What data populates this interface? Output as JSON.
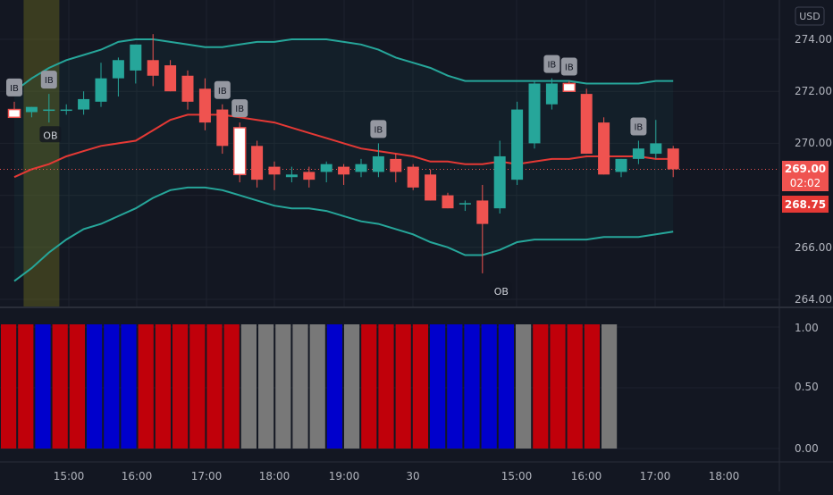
{
  "currency": "USD",
  "price_axis": {
    "ticks": [
      "274.00",
      "272.00",
      "270.00",
      "266.00",
      "264.00"
    ]
  },
  "price_labels": {
    "last_price": "269.00",
    "countdown": "02:02",
    "ref_price": "268.75",
    "last_color": "#ef5350",
    "ref_color": "#e53935"
  },
  "indicator_axis": {
    "ticks": [
      "1.00",
      "0.50",
      "0.00"
    ]
  },
  "time_axis": {
    "ticks": [
      "15:00",
      "16:00",
      "17:00",
      "18:00",
      "19:00",
      "30",
      "15:00",
      "16:00",
      "17:00",
      "18:00"
    ]
  },
  "markers": {
    "inside_bar": "IB",
    "order_block": "OB"
  },
  "colors": {
    "background": "#131722",
    "up": "#26a69a",
    "down": "#ef5350",
    "basis": "#e53935",
    "bands": "#26a69a",
    "ob_highlight": "#6b6b1f",
    "bar_red": "#c0000a",
    "bar_blue": "#0000cc",
    "bar_gray": "#787878"
  },
  "chart_data": {
    "type": "candlestick",
    "y_unit": "USD",
    "ylim": [
      263.8,
      275.0
    ],
    "candles": [
      {
        "o": 271.3,
        "h": 271.6,
        "l": 271.0,
        "c": 271.0
      },
      {
        "o": 271.2,
        "h": 271.4,
        "l": 271.0,
        "c": 271.4
      },
      {
        "o": 271.3,
        "h": 271.9,
        "l": 270.8,
        "c": 271.3
      },
      {
        "o": 271.3,
        "h": 271.5,
        "l": 271.1,
        "c": 271.3
      },
      {
        "o": 271.3,
        "h": 272.0,
        "l": 271.1,
        "c": 271.7
      },
      {
        "o": 271.6,
        "h": 273.1,
        "l": 271.4,
        "c": 272.5
      },
      {
        "o": 272.5,
        "h": 273.3,
        "l": 271.8,
        "c": 273.2
      },
      {
        "o": 272.8,
        "h": 273.8,
        "l": 272.3,
        "c": 273.8
      },
      {
        "o": 273.2,
        "h": 274.2,
        "l": 272.2,
        "c": 272.6
      },
      {
        "o": 273.0,
        "h": 273.2,
        "l": 272.0,
        "c": 272.0
      },
      {
        "o": 272.6,
        "h": 272.8,
        "l": 271.3,
        "c": 271.6
      },
      {
        "o": 272.1,
        "h": 272.5,
        "l": 270.5,
        "c": 270.8
      },
      {
        "o": 271.3,
        "h": 271.5,
        "l": 269.6,
        "c": 269.9
      },
      {
        "o": 270.6,
        "h": 270.8,
        "l": 268.5,
        "c": 268.8
      },
      {
        "o": 269.9,
        "h": 270.1,
        "l": 268.3,
        "c": 268.6
      },
      {
        "o": 269.1,
        "h": 269.3,
        "l": 268.2,
        "c": 268.8
      },
      {
        "o": 268.7,
        "h": 269.1,
        "l": 268.5,
        "c": 268.8
      },
      {
        "o": 268.9,
        "h": 269.1,
        "l": 268.3,
        "c": 268.6
      },
      {
        "o": 268.9,
        "h": 269.3,
        "l": 268.5,
        "c": 269.2
      },
      {
        "o": 269.1,
        "h": 269.2,
        "l": 268.4,
        "c": 268.8
      },
      {
        "o": 268.9,
        "h": 269.4,
        "l": 268.7,
        "c": 269.2
      },
      {
        "o": 268.9,
        "h": 270.0,
        "l": 268.7,
        "c": 269.5
      },
      {
        "o": 269.4,
        "h": 269.6,
        "l": 268.5,
        "c": 268.9
      },
      {
        "o": 269.1,
        "h": 269.2,
        "l": 268.2,
        "c": 268.3
      },
      {
        "o": 268.8,
        "h": 269.0,
        "l": 267.8,
        "c": 267.8
      },
      {
        "o": 268.0,
        "h": 268.1,
        "l": 267.5,
        "c": 267.5
      },
      {
        "o": 267.7,
        "h": 267.8,
        "l": 267.4,
        "c": 267.7
      },
      {
        "o": 267.8,
        "h": 268.4,
        "l": 265.0,
        "c": 266.9
      },
      {
        "o": 267.5,
        "h": 270.1,
        "l": 267.3,
        "c": 269.5
      },
      {
        "o": 268.6,
        "h": 271.6,
        "l": 268.4,
        "c": 271.3
      },
      {
        "o": 270.0,
        "h": 272.4,
        "l": 269.8,
        "c": 272.3
      },
      {
        "o": 271.5,
        "h": 272.5,
        "l": 271.3,
        "c": 272.3
      },
      {
        "o": 272.3,
        "h": 272.4,
        "l": 272.0,
        "c": 272.0
      },
      {
        "o": 271.9,
        "h": 272.1,
        "l": 269.6,
        "c": 269.6
      },
      {
        "o": 270.8,
        "h": 271.0,
        "l": 268.8,
        "c": 268.8
      },
      {
        "o": 268.9,
        "h": 269.4,
        "l": 268.7,
        "c": 269.4
      },
      {
        "o": 269.4,
        "h": 270.1,
        "l": 269.2,
        "c": 269.8
      },
      {
        "o": 269.6,
        "h": 270.9,
        "l": 269.4,
        "c": 270.0
      },
      {
        "o": 269.8,
        "h": 269.9,
        "l": 268.7,
        "c": 269.0
      }
    ],
    "basis": [
      268.7,
      269.0,
      269.2,
      269.5,
      269.7,
      269.9,
      270.0,
      270.1,
      270.5,
      270.9,
      271.1,
      271.1,
      271.1,
      271.0,
      270.9,
      270.8,
      270.6,
      270.4,
      270.2,
      270.0,
      269.8,
      269.7,
      269.6,
      269.5,
      269.3,
      269.3,
      269.2,
      269.2,
      269.3,
      269.2,
      269.3,
      269.4,
      269.4,
      269.5,
      269.5,
      269.5,
      269.5,
      269.4,
      269.4
    ],
    "upper_band": [
      272.0,
      272.5,
      272.9,
      273.2,
      273.4,
      273.6,
      273.9,
      274.0,
      274.0,
      273.9,
      273.8,
      273.7,
      273.7,
      273.8,
      273.9,
      273.9,
      274.0,
      274.0,
      274.0,
      273.9,
      273.8,
      273.6,
      273.3,
      273.1,
      272.9,
      272.6,
      272.4,
      272.4,
      272.4,
      272.4,
      272.4,
      272.4,
      272.4,
      272.3,
      272.3,
      272.3,
      272.3,
      272.4,
      272.4
    ],
    "lower_band": [
      264.7,
      265.2,
      265.8,
      266.3,
      266.7,
      266.9,
      267.2,
      267.5,
      267.9,
      268.2,
      268.3,
      268.3,
      268.2,
      268.0,
      267.8,
      267.6,
      267.5,
      267.5,
      267.4,
      267.2,
      267.0,
      266.9,
      266.7,
      266.5,
      266.2,
      266.0,
      265.7,
      265.7,
      265.9,
      266.2,
      266.3,
      266.3,
      266.3,
      266.3,
      266.4,
      266.4,
      266.4,
      266.5,
      266.6
    ],
    "ib_markers": [
      0,
      2,
      12,
      13,
      21,
      31,
      32,
      36
    ],
    "ob_markers": [
      {
        "index": 1,
        "position": "below"
      },
      {
        "index": 27,
        "position": "below"
      }
    ],
    "indicator": {
      "ylim": [
        0,
        1
      ],
      "values": [
        1,
        1,
        1,
        1,
        1,
        1,
        1,
        1,
        1,
        1,
        1,
        1,
        1,
        1,
        1,
        1,
        1,
        1,
        1,
        1,
        1,
        1,
        1,
        1,
        1,
        1,
        1,
        1,
        1,
        1,
        1,
        1,
        1,
        1,
        1,
        1
      ],
      "states": [
        "red",
        "red",
        "blue",
        "red",
        "red",
        "blue",
        "blue",
        "blue",
        "red",
        "red",
        "red",
        "red",
        "red",
        "red",
        "gray",
        "gray",
        "gray",
        "gray",
        "gray",
        "blue",
        "gray",
        "red",
        "red",
        "red",
        "red",
        "blue",
        "blue",
        "blue",
        "blue",
        "blue",
        "gray",
        "red",
        "red",
        "red",
        "red",
        "gray"
      ]
    }
  }
}
